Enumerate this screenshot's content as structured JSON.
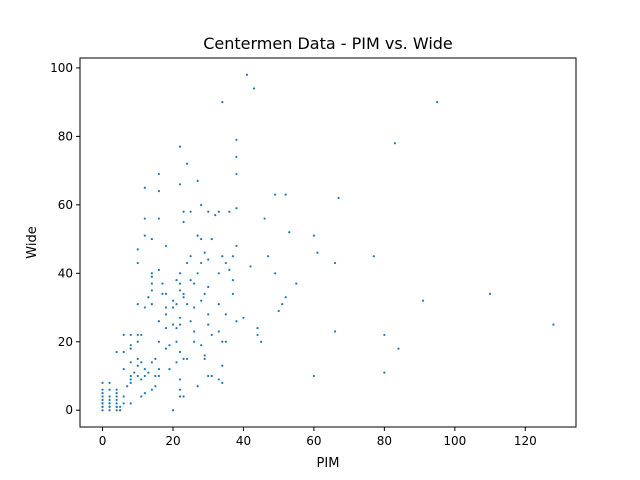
{
  "chart_data": {
    "type": "scatter",
    "title": "Centermen Data - PIM vs. Wide",
    "xlabel": "PIM",
    "ylabel": "Wide",
    "xlim": [
      -6.4,
      134.4
    ],
    "ylim": [
      -4.9,
      102.9
    ],
    "x_ticks": [
      0,
      20,
      40,
      60,
      80,
      100,
      120
    ],
    "y_ticks": [
      0,
      20,
      40,
      60,
      80,
      100
    ],
    "grid": false,
    "legend": "none",
    "marker_color": "#1f77b4",
    "series": [
      {
        "points": [
          [
            0,
            0
          ],
          [
            0,
            1
          ],
          [
            0,
            2
          ],
          [
            0,
            3
          ],
          [
            0,
            4
          ],
          [
            0,
            5
          ],
          [
            0,
            6
          ],
          [
            0,
            8
          ],
          [
            0,
            1
          ],
          [
            0,
            2
          ],
          [
            2,
            0
          ],
          [
            2,
            1
          ],
          [
            2,
            2
          ],
          [
            2,
            3
          ],
          [
            2,
            4
          ],
          [
            2,
            6
          ],
          [
            2,
            8
          ],
          [
            2,
            1
          ],
          [
            2,
            2
          ],
          [
            4,
            0
          ],
          [
            4,
            1
          ],
          [
            4,
            2
          ],
          [
            4,
            3
          ],
          [
            4,
            4
          ],
          [
            4,
            5
          ],
          [
            4,
            6
          ],
          [
            4,
            17
          ],
          [
            4,
            1
          ],
          [
            5,
            0
          ],
          [
            5,
            1
          ],
          [
            6,
            2
          ],
          [
            6,
            12
          ],
          [
            6,
            17
          ],
          [
            6,
            4
          ],
          [
            6,
            22
          ],
          [
            7,
            7
          ],
          [
            8,
            8
          ],
          [
            8,
            9
          ],
          [
            8,
            10
          ],
          [
            8,
            14
          ],
          [
            8,
            18
          ],
          [
            8,
            19
          ],
          [
            8,
            2
          ],
          [
            8,
            22
          ],
          [
            9,
            11
          ],
          [
            10,
            10
          ],
          [
            10,
            13
          ],
          [
            10,
            15
          ],
          [
            10,
            20
          ],
          [
            10,
            22
          ],
          [
            10,
            31
          ],
          [
            10,
            43
          ],
          [
            10,
            47
          ],
          [
            11,
            4
          ],
          [
            11,
            9
          ],
          [
            11,
            14
          ],
          [
            11,
            22
          ],
          [
            12,
            5
          ],
          [
            12,
            10
          ],
          [
            12,
            12
          ],
          [
            12,
            30
          ],
          [
            12,
            51
          ],
          [
            12,
            56
          ],
          [
            12,
            65
          ],
          [
            13,
            11
          ],
          [
            13,
            33
          ],
          [
            14,
            6
          ],
          [
            14,
            14
          ],
          [
            14,
            31
          ],
          [
            14,
            35
          ],
          [
            14,
            37
          ],
          [
            14,
            39
          ],
          [
            14,
            40
          ],
          [
            14,
            50
          ],
          [
            15,
            7
          ],
          [
            15,
            10
          ],
          [
            15,
            15
          ],
          [
            16,
            10
          ],
          [
            16,
            12
          ],
          [
            16,
            20
          ],
          [
            16,
            26
          ],
          [
            16,
            41
          ],
          [
            16,
            56
          ],
          [
            16,
            64
          ],
          [
            16,
            69
          ],
          [
            17,
            34
          ],
          [
            17,
            37
          ],
          [
            18,
            18
          ],
          [
            18,
            24
          ],
          [
            18,
            28
          ],
          [
            18,
            30
          ],
          [
            18,
            34
          ],
          [
            18,
            48
          ],
          [
            19,
            12
          ],
          [
            19,
            19
          ],
          [
            20,
            0
          ],
          [
            20,
            25
          ],
          [
            20,
            30
          ],
          [
            20,
            32
          ],
          [
            21,
            14
          ],
          [
            21,
            20
          ],
          [
            21,
            24
          ],
          [
            21,
            31
          ],
          [
            21,
            38
          ],
          [
            22,
            4
          ],
          [
            22,
            6
          ],
          [
            22,
            9
          ],
          [
            22,
            17
          ],
          [
            22,
            25
          ],
          [
            22,
            27
          ],
          [
            22,
            35
          ],
          [
            22,
            37
          ],
          [
            22,
            40
          ],
          [
            22,
            66
          ],
          [
            22,
            77
          ],
          [
            23,
            4
          ],
          [
            23,
            15
          ],
          [
            23,
            33
          ],
          [
            23,
            34
          ],
          [
            23,
            55
          ],
          [
            23,
            58
          ],
          [
            24,
            15
          ],
          [
            24,
            31
          ],
          [
            24,
            43
          ],
          [
            24,
            72
          ],
          [
            25,
            26
          ],
          [
            25,
            38
          ],
          [
            25,
            45
          ],
          [
            25,
            58
          ],
          [
            26,
            20
          ],
          [
            26,
            23
          ],
          [
            26,
            30
          ],
          [
            26,
            37
          ],
          [
            27,
            7
          ],
          [
            27,
            40
          ],
          [
            27,
            51
          ],
          [
            27,
            67
          ],
          [
            28,
            19
          ],
          [
            28,
            32
          ],
          [
            28,
            43
          ],
          [
            28,
            50
          ],
          [
            28,
            60
          ],
          [
            29,
            15
          ],
          [
            29,
            16
          ],
          [
            29,
            34
          ],
          [
            29,
            46
          ],
          [
            30,
            10
          ],
          [
            30,
            25
          ],
          [
            30,
            28
          ],
          [
            30,
            36
          ],
          [
            30,
            44
          ],
          [
            30,
            58
          ],
          [
            31,
            10
          ],
          [
            31,
            22
          ],
          [
            31,
            50
          ],
          [
            32,
            57
          ],
          [
            33,
            9
          ],
          [
            33,
            23
          ],
          [
            33,
            31
          ],
          [
            33,
            40
          ],
          [
            33,
            58
          ],
          [
            34,
            8
          ],
          [
            34,
            13
          ],
          [
            34,
            20
          ],
          [
            34,
            45
          ],
          [
            34,
            90
          ],
          [
            35,
            20
          ],
          [
            35,
            28
          ],
          [
            35,
            43
          ],
          [
            36,
            41
          ],
          [
            36,
            58
          ],
          [
            37,
            34
          ],
          [
            37,
            45
          ],
          [
            37,
            38
          ],
          [
            38,
            26
          ],
          [
            38,
            48
          ],
          [
            38,
            69
          ],
          [
            38,
            74
          ],
          [
            38,
            79
          ],
          [
            38,
            59
          ],
          [
            40,
            27
          ],
          [
            41,
            98
          ],
          [
            42,
            42
          ],
          [
            43,
            94
          ],
          [
            44,
            22
          ],
          [
            44,
            24
          ],
          [
            45,
            20
          ],
          [
            46,
            56
          ],
          [
            47,
            45
          ],
          [
            49,
            40
          ],
          [
            49,
            63
          ],
          [
            50,
            29
          ],
          [
            51,
            31
          ],
          [
            52,
            33
          ],
          [
            52,
            63
          ],
          [
            53,
            52
          ],
          [
            55,
            37
          ],
          [
            60,
            10
          ],
          [
            60,
            51
          ],
          [
            61,
            46
          ],
          [
            66,
            23
          ],
          [
            66,
            43
          ],
          [
            67,
            62
          ],
          [
            77,
            45
          ],
          [
            80,
            11
          ],
          [
            80,
            22
          ],
          [
            83,
            78
          ],
          [
            84,
            18
          ],
          [
            91,
            32
          ],
          [
            95,
            90
          ],
          [
            110,
            34
          ],
          [
            128,
            25
          ]
        ]
      }
    ]
  }
}
